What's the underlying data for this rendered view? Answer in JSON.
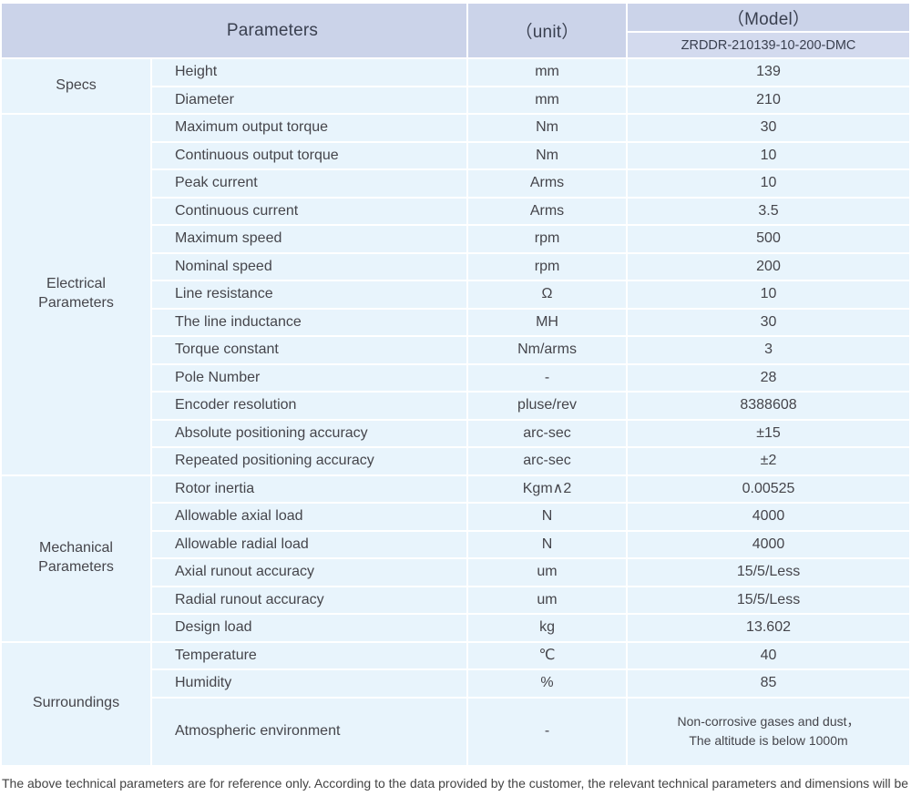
{
  "colors": {
    "header_bg": "#cbd3e9",
    "model_row_bg": "#d3daee",
    "cell_bg": "#e8f4fc",
    "header_text": "#3a4050",
    "cell_text": "#45454b",
    "footnote_text": "#434343"
  },
  "table": {
    "header": {
      "parameters_label": "Parameters",
      "unit_label": "（unit）",
      "model_label": "（Model）",
      "model_value": "ZRDDR-210139-10-200-DMC"
    },
    "sections": [
      {
        "group_lines": [
          "Specs"
        ],
        "rows": [
          {
            "param": "Height",
            "unit": "mm",
            "value": "139"
          },
          {
            "param": "Diameter",
            "unit": "mm",
            "value": "210"
          }
        ]
      },
      {
        "group_lines": [
          "Electrical",
          "Parameters"
        ],
        "rows": [
          {
            "param": "Maximum output torque",
            "unit": "Nm",
            "value": "30"
          },
          {
            "param": "Continuous output torque",
            "unit": "Nm",
            "value": "10"
          },
          {
            "param": "Peak current",
            "unit": "Arms",
            "value": "10"
          },
          {
            "param": "Continuous current",
            "unit": "Arms",
            "value": "3.5"
          },
          {
            "param": "Maximum speed",
            "unit": "rpm",
            "value": "500"
          },
          {
            "param": "Nominal speed",
            "unit": "rpm",
            "value": "200"
          },
          {
            "param": "Line resistance",
            "unit": "Ω",
            "value": "10"
          },
          {
            "param": "The line inductance",
            "unit": "MH",
            "value": "30"
          },
          {
            "param": "Torque constant",
            "unit": "Nm/arms",
            "value": "3"
          },
          {
            "param": "Pole Number",
            "unit": "-",
            "value": "28"
          },
          {
            "param": "Encoder resolution",
            "unit": "pluse/rev",
            "value": "8388608"
          },
          {
            "param": "Absolute positioning accuracy",
            "unit": "arc-sec",
            "value": "±15"
          },
          {
            "param": "Repeated positioning accuracy",
            "unit": "arc-sec",
            "value": "±2"
          }
        ]
      },
      {
        "group_lines": [
          "Mechanical",
          "Parameters"
        ],
        "rows": [
          {
            "param": "Rotor inertia",
            "unit": "Kgm∧2",
            "value": "0.00525"
          },
          {
            "param": "Allowable axial load",
            "unit": "N",
            "value": "4000"
          },
          {
            "param": "Allowable radial load",
            "unit": "N",
            "value": "4000"
          },
          {
            "param": "Axial runout accuracy",
            "unit": "um",
            "value": "15/5/Less"
          },
          {
            "param": "Radial runout accuracy",
            "unit": "um",
            "value": "15/5/Less"
          },
          {
            "param": "Design load",
            "unit": "kg",
            "value": "13.602"
          }
        ]
      },
      {
        "group_lines": [
          "Surroundings"
        ],
        "rows": [
          {
            "param": "Temperature",
            "unit": "℃",
            "value": "40"
          },
          {
            "param": "Humidity",
            "unit": "%",
            "value": "85"
          },
          {
            "param": "Atmospheric environment",
            "unit": "-",
            "tall": true,
            "value_lines": [
              "Non-corrosive gases and dust，",
              "The altitude is below 1000m"
            ]
          }
        ]
      }
    ],
    "footnote": "The above technical parameters are for reference only. According to the data provided by the customer, the relevant technical parameters and dimensions will be issued."
  }
}
